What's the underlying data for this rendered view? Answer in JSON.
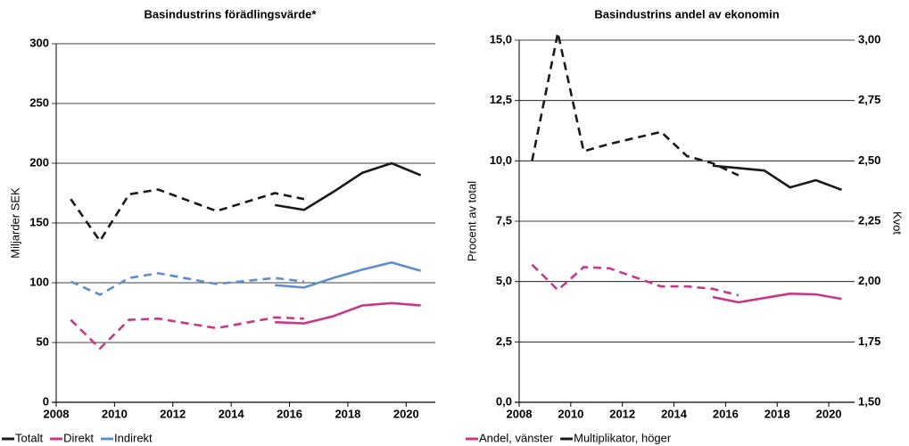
{
  "chart_data": [
    {
      "type": "line",
      "title": "Basindustrins förädlingsvärde*",
      "ylabel": "Miljarder SEK",
      "xlim": [
        2008,
        2021
      ],
      "xticks": [
        2008,
        2010,
        2012,
        2014,
        2016,
        2018,
        2020
      ],
      "ylim": [
        0,
        300
      ],
      "yticks": [
        0,
        50,
        100,
        150,
        200,
        250,
        300
      ],
      "grid": true,
      "series": [
        {
          "name": "Totalt",
          "color": "#1a1a1a",
          "segments": [
            {
              "style": "dashed",
              "x": [
                2008.5,
                2009.5,
                2010.5,
                2011.5,
                2013.5,
                2015.5,
                2016.5
              ],
              "values": [
                170,
                135,
                174,
                178,
                160,
                175,
                170
              ]
            },
            {
              "style": "solid",
              "x": [
                2015.5,
                2016.5,
                2017.5,
                2018.5,
                2019.5,
                2020.5
              ],
              "values": [
                165,
                161,
                176,
                192,
                200,
                190
              ]
            }
          ]
        },
        {
          "name": "Direkt",
          "color": "#c8388a",
          "segments": [
            {
              "style": "dashed",
              "x": [
                2008.5,
                2009.5,
                2010.5,
                2011.5,
                2013.5,
                2015.5,
                2016.5
              ],
              "values": [
                69,
                45,
                69,
                70,
                62,
                71,
                70
              ]
            },
            {
              "style": "solid",
              "x": [
                2015.5,
                2016.5,
                2017.5,
                2018.5,
                2019.5,
                2020.5
              ],
              "values": [
                67,
                66,
                72,
                81,
                83,
                81
              ]
            }
          ]
        },
        {
          "name": "Indirekt",
          "color": "#5b8fd0",
          "segments": [
            {
              "style": "dashed",
              "x": [
                2008.5,
                2009.5,
                2010.5,
                2011.5,
                2013.5,
                2015.5,
                2016.5
              ],
              "values": [
                101,
                90,
                104,
                108,
                99,
                104,
                101
              ]
            },
            {
              "style": "solid",
              "x": [
                2015.5,
                2016.5,
                2017.5,
                2018.5,
                2019.5,
                2020.5
              ],
              "values": [
                98,
                96,
                104,
                111,
                117,
                110
              ]
            }
          ]
        }
      ]
    },
    {
      "type": "line",
      "title": "Basindustrins andel av ekonomin",
      "ylabel": "Procent av total",
      "y2label": "Kvot",
      "xlim": [
        2008,
        2021
      ],
      "xticks": [
        2008,
        2010,
        2012,
        2014,
        2016,
        2018,
        2020
      ],
      "ylim": [
        0,
        15
      ],
      "yticks": [
        {
          "value": 0,
          "label": "0,0"
        },
        {
          "value": 2.5,
          "label": "2,5"
        },
        {
          "value": 5,
          "label": "5,0"
        },
        {
          "value": 7.5,
          "label": "7,5"
        },
        {
          "value": 10,
          "label": "10,0"
        },
        {
          "value": 12.5,
          "label": "12,5"
        },
        {
          "value": 15,
          "label": "15,0"
        }
      ],
      "y2lim": [
        1.5,
        3.0
      ],
      "y2ticks": [
        {
          "value": 1.5,
          "label": "1,50"
        },
        {
          "value": 1.75,
          "label": "1,75"
        },
        {
          "value": 2.0,
          "label": "2,00"
        },
        {
          "value": 2.25,
          "label": "2,25"
        },
        {
          "value": 2.5,
          "label": "2,50"
        },
        {
          "value": 2.75,
          "label": "2,75"
        },
        {
          "value": 3.0,
          "label": "3,00"
        }
      ],
      "grid": true,
      "series": [
        {
          "name": "Andel, vänster",
          "color": "#c8388a",
          "segments": [
            {
              "style": "dashed",
              "x": [
                2008.5,
                2009.5,
                2010.5,
                2011.5,
                2013.5,
                2014.5,
                2015.5,
                2016.5
              ],
              "values": [
                5.7,
                4.65,
                5.6,
                5.55,
                4.8,
                4.8,
                4.7,
                4.43
              ]
            },
            {
              "style": "solid",
              "x": [
                2015.5,
                2016.5,
                2017.5,
                2018.5,
                2019.5,
                2020.5
              ],
              "values": [
                4.36,
                4.14,
                4.32,
                4.5,
                4.47,
                4.28
              ]
            }
          ]
        },
        {
          "name": "Multiplikator, höger",
          "color": "#1a1a1a",
          "axis": "y2",
          "segments": [
            {
              "style": "dashed",
              "x": [
                2008.5,
                2009.5,
                2010.5,
                2011.5,
                2013.5,
                2014.5,
                2015.5,
                2016.5
              ],
              "values": [
                2.5,
                3.03,
                2.54,
                2.57,
                2.62,
                2.52,
                2.49,
                2.44
              ]
            },
            {
              "style": "solid",
              "x": [
                2015.5,
                2016.5,
                2017.5,
                2018.5,
                2019.5,
                2020.5
              ],
              "values": [
                2.48,
                2.47,
                2.46,
                2.39,
                2.42,
                2.38
              ]
            }
          ]
        }
      ]
    }
  ]
}
